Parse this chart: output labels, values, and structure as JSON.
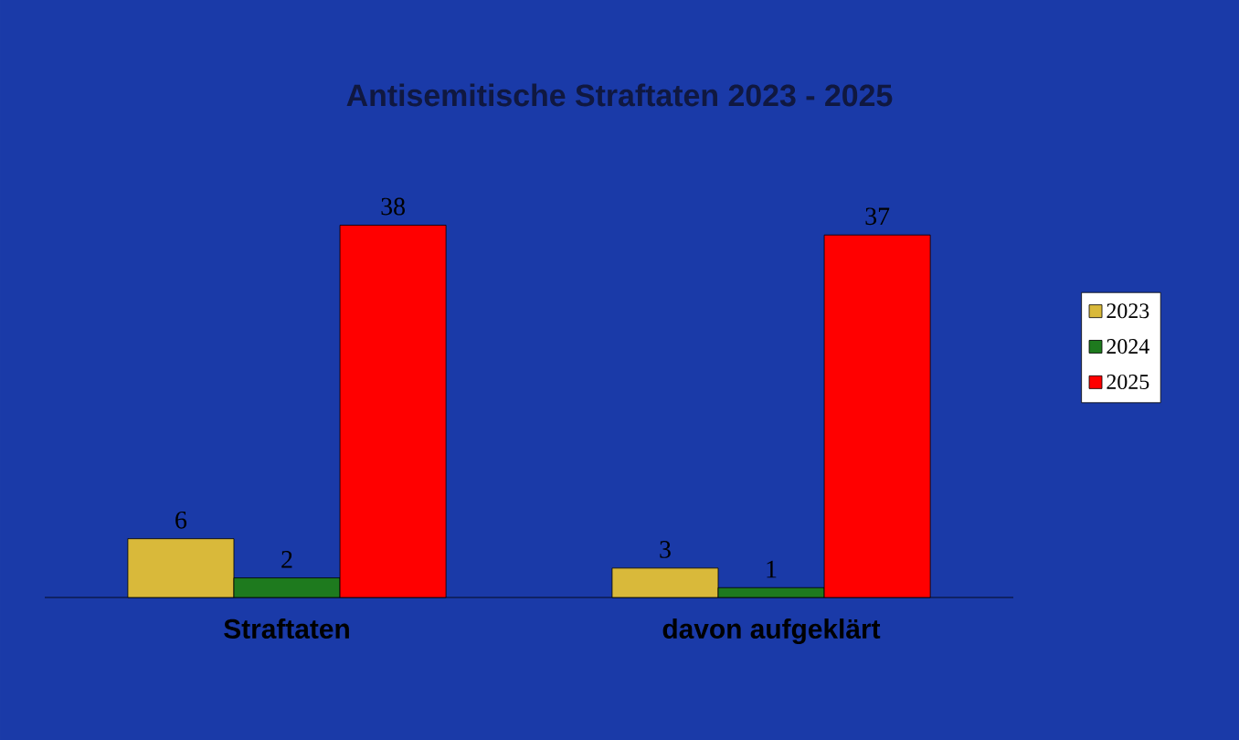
{
  "chart_data": {
    "type": "bar",
    "title": "Antisemitische Straftaten 2023 - 2025",
    "categories": [
      "Straftaten",
      "davon aufgeklärt"
    ],
    "series": [
      {
        "name": "2023",
        "color": "#d9b93a",
        "values": [
          6,
          3
        ]
      },
      {
        "name": "2024",
        "color": "#1e7a1e",
        "values": [
          2,
          1
        ]
      },
      {
        "name": "2025",
        "color": "#ff0000",
        "values": [
          38,
          37
        ]
      }
    ],
    "data_labels": true,
    "legend": "right"
  }
}
